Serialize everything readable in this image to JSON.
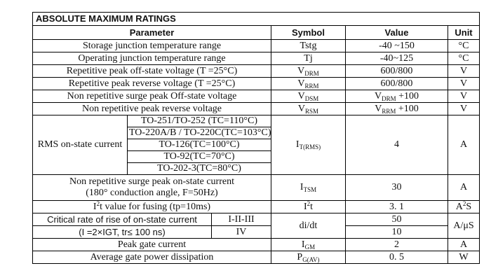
{
  "title": "ABSOLUTE MAXIMUM RATINGS",
  "headers": {
    "parameter": "Parameter",
    "symbol": "Symbol",
    "value": "Value",
    "unit": "Unit"
  },
  "rows": {
    "storage": {
      "param": "Storage junction temperature range",
      "symbol": "Tstg",
      "value": "-40 ~150",
      "unit": "°C"
    },
    "operating": {
      "param": "Operating junction temperature range",
      "symbol": "Tj",
      "value": "-40~125",
      "unit": "°C"
    },
    "vdrm": {
      "param": "Repetitive peak off-state voltage (T =25°C)",
      "symbol_main": "V",
      "symbol_sub": "DRM",
      "value": "600/800",
      "unit": "V"
    },
    "vrrm": {
      "param": "Repetitive peak reverse voltage (T =25°C)",
      "symbol_main": "V",
      "symbol_sub": "RRM",
      "value": "600/800",
      "unit": "V"
    },
    "vdsm": {
      "param": "Non repetitive surge peak Off-state voltage",
      "symbol_main": "V",
      "symbol_sub": "DSM",
      "value_main": "V",
      "value_sub": "DRM",
      "value_tail": " +100",
      "unit": "V"
    },
    "vrsm": {
      "param": "Non repetitive peak reverse voltage",
      "symbol_main": "V",
      "symbol_sub": "RSM",
      "value_main": "V",
      "value_sub": "RRM",
      "value_tail": " +100",
      "unit": "V"
    },
    "rms": {
      "param": "RMS on-state current",
      "packages": [
        "TO-251/TO-252 (TC=110°C)",
        "TO-220A/B / TO-220C(TC=103°C)",
        "TO-126(TC=100°C)",
        "TO-92(TC=70°C)",
        "TO-202-3(TC=80°C)"
      ],
      "symbol_main": "I",
      "symbol_sub": "T(RMS)",
      "value": "4",
      "unit": "A"
    },
    "itsm": {
      "param_line1": "Non repetitive surge peak on-state current",
      "param_line2": "(180° conduction angle, F=50Hz)",
      "symbol_main": "I",
      "symbol_sub": "TSM",
      "value": "30",
      "unit": "A"
    },
    "i2t": {
      "param_pre": "I",
      "param_sup": "2",
      "param_post": "t value for fusing (tp=10ms)",
      "symbol_pre": "I",
      "symbol_sup": "2",
      "symbol_post": "t",
      "value": "3. 1",
      "unit_pre": "A",
      "unit_sup": "2",
      "unit_post": "S"
    },
    "didt": {
      "param_line1": "Critical rate of rise of on-state current",
      "param_line2": "(I =2×IGT,  tr≤ 100 ns)",
      "quadrant1": "I-II-III",
      "quadrant2": "IV",
      "symbol": "di/dt",
      "value1": "50",
      "value2": "10",
      "unit": "A/μS"
    },
    "igm": {
      "param": "Peak gate current",
      "symbol_main": "I",
      "symbol_sub": "GM",
      "value": "2",
      "unit": "A"
    },
    "pgav": {
      "param": "Average gate power dissipation",
      "symbol_main": "P",
      "symbol_sub": "G(AV)",
      "value": "0. 5",
      "unit": "W"
    }
  }
}
